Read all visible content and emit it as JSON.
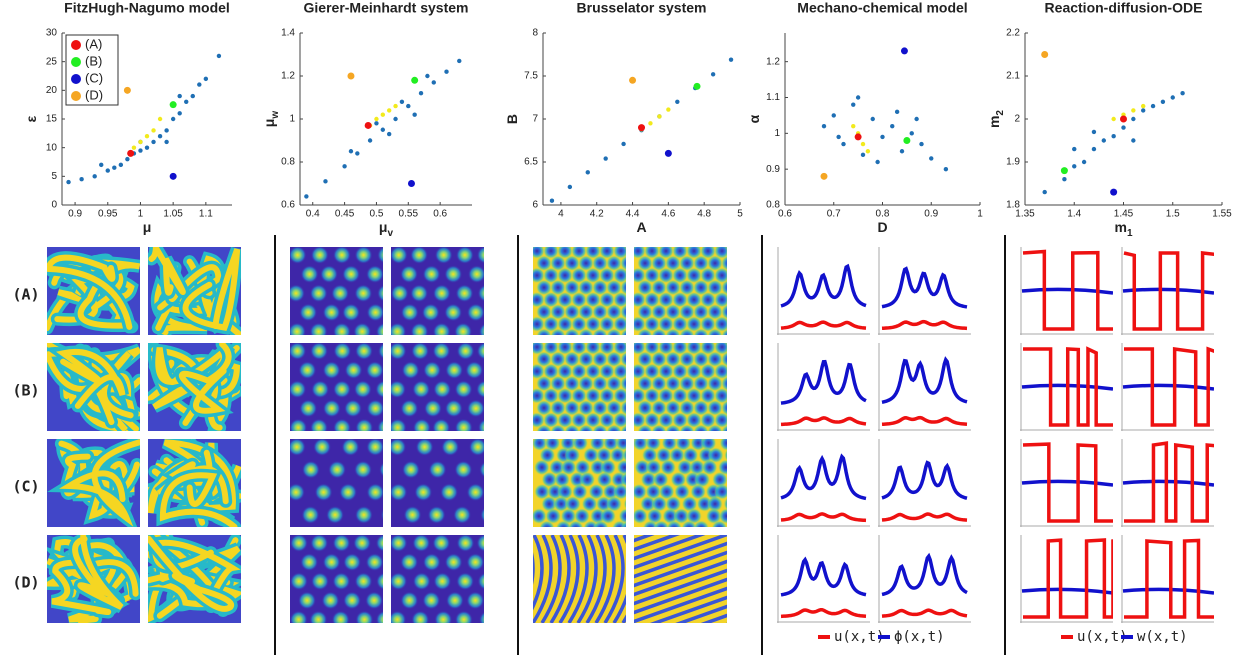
{
  "chart_data": [
    {
      "type": "scatter",
      "title": "FitzHugh-Nagumo model",
      "xlabel": "μ",
      "ylabel": "ε",
      "xlim": [
        0.88,
        1.14
      ],
      "xticks": [
        0.9,
        0.95,
        1,
        1.05,
        1.1
      ],
      "ylim": [
        0,
        30
      ],
      "yticks": [
        0,
        5,
        10,
        15,
        20,
        25,
        30
      ],
      "legend": "upper left",
      "cloud": {
        "color": "#1f6fb4",
        "x": [
          0.89,
          0.91,
          0.93,
          0.95,
          0.96,
          0.97,
          0.98,
          0.99,
          1.0,
          1.01,
          1.02,
          1.03,
          1.04,
          1.05,
          1.06,
          1.07,
          1.08,
          1.09,
          1.1,
          1.12,
          0.94,
          1.0,
          1.04,
          1.06
        ],
        "y": [
          4,
          4.5,
          5,
          6,
          6.5,
          7,
          8,
          9,
          9.5,
          10,
          11,
          12,
          13,
          15,
          16,
          18,
          19,
          21,
          22,
          26,
          7,
          11,
          11,
          19
        ]
      },
      "core": {
        "color": "#f2ea1c",
        "x": [
          0.99,
          1.0,
          1.01,
          1.02,
          1.03
        ],
        "y": [
          10,
          11,
          12,
          13,
          15
        ]
      },
      "series": [
        {
          "name": "(A)",
          "color": "#ee1111",
          "x": [
            0.985
          ],
          "y": [
            9
          ]
        },
        {
          "name": "(B)",
          "color": "#22ee22",
          "x": [
            1.05
          ],
          "y": [
            17.5
          ]
        },
        {
          "name": "(C)",
          "color": "#1111cc",
          "x": [
            1.05
          ],
          "y": [
            5
          ]
        },
        {
          "name": "(D)",
          "color": "#f5a623",
          "x": [
            0.98
          ],
          "y": [
            20
          ]
        }
      ]
    },
    {
      "type": "scatter",
      "title": "Gierer-Meinhardt system",
      "xlabel": "μ",
      "xlabel_sub": "v",
      "ylabel": "μ",
      "ylabel_sub": "w",
      "xlim": [
        0.38,
        0.65
      ],
      "xticks": [
        0.4,
        0.45,
        0.5,
        0.55,
        0.6
      ],
      "ylim": [
        0.6,
        1.4
      ],
      "yticks": [
        0.6,
        0.8,
        1,
        1.2,
        1.4
      ],
      "cloud": {
        "color": "#1f6fb4",
        "x": [
          0.39,
          0.42,
          0.45,
          0.47,
          0.49,
          0.51,
          0.53,
          0.55,
          0.57,
          0.59,
          0.61,
          0.63,
          0.5,
          0.52,
          0.56,
          0.58,
          0.46,
          0.54
        ],
        "y": [
          0.64,
          0.71,
          0.78,
          0.84,
          0.9,
          0.95,
          1.0,
          1.06,
          1.12,
          1.17,
          1.22,
          1.27,
          0.98,
          0.93,
          1.02,
          1.2,
          0.85,
          1.08
        ]
      },
      "core": {
        "color": "#f2ea1c",
        "x": [
          0.49,
          0.5,
          0.51,
          0.52,
          0.53
        ],
        "y": [
          0.97,
          1.0,
          1.02,
          1.04,
          1.06
        ]
      },
      "series": [
        {
          "color": "#ee1111",
          "x": [
            0.487
          ],
          "y": [
            0.97
          ]
        },
        {
          "color": "#22ee22",
          "x": [
            0.56
          ],
          "y": [
            1.18
          ]
        },
        {
          "color": "#1111cc",
          "x": [
            0.555
          ],
          "y": [
            0.7
          ]
        },
        {
          "color": "#f5a623",
          "x": [
            0.46
          ],
          "y": [
            1.2
          ]
        }
      ]
    },
    {
      "type": "scatter",
      "title": "Brusselator system",
      "xlabel": "A",
      "ylabel": "B",
      "xlim": [
        3.9,
        5
      ],
      "xticks": [
        4,
        4.2,
        4.4,
        4.6,
        4.8,
        5
      ],
      "ylim": [
        6,
        8
      ],
      "yticks": [
        6,
        6.5,
        7,
        7.5,
        8
      ],
      "cloud": {
        "color": "#1f6fb4",
        "x": [
          3.95,
          4.05,
          4.15,
          4.25,
          4.35,
          4.45,
          4.55,
          4.65,
          4.75,
          4.85,
          4.95
        ],
        "y": [
          6.05,
          6.21,
          6.38,
          6.54,
          6.71,
          6.87,
          7.03,
          7.2,
          7.36,
          7.52,
          7.69
        ]
      },
      "core": {
        "color": "#f2ea1c",
        "x": [
          4.45,
          4.5,
          4.55,
          4.6
        ],
        "y": [
          6.88,
          6.95,
          7.03,
          7.11
        ]
      },
      "series": [
        {
          "color": "#ee1111",
          "x": [
            4.45
          ],
          "y": [
            6.9
          ]
        },
        {
          "color": "#22ee22",
          "x": [
            4.76
          ],
          "y": [
            7.38
          ]
        },
        {
          "color": "#1111cc",
          "x": [
            4.6
          ],
          "y": [
            6.6
          ]
        },
        {
          "color": "#f5a623",
          "x": [
            4.4
          ],
          "y": [
            7.45
          ]
        }
      ]
    },
    {
      "type": "scatter",
      "title": "Mechano-chemical model",
      "xlabel": "D",
      "ylabel": "α",
      "xlim": [
        0.6,
        1
      ],
      "xticks": [
        0.6,
        0.7,
        0.8,
        0.9,
        1
      ],
      "ylim": [
        0.8,
        1.28
      ],
      "yticks": [
        0.8,
        0.9,
        1,
        1.1,
        1.2
      ],
      "cloud": {
        "color": "#1f6fb4",
        "x": [
          0.68,
          0.7,
          0.72,
          0.74,
          0.76,
          0.78,
          0.8,
          0.82,
          0.84,
          0.86,
          0.88,
          0.9,
          0.75,
          0.79,
          0.83,
          0.71,
          0.93,
          0.87
        ],
        "y": [
          1.02,
          1.05,
          0.97,
          1.08,
          0.94,
          1.04,
          0.99,
          1.02,
          0.95,
          1.0,
          0.97,
          0.93,
          1.1,
          0.92,
          1.06,
          0.99,
          0.9,
          1.04
        ]
      },
      "core": {
        "color": "#f2ea1c",
        "x": [
          0.75,
          0.76,
          0.74,
          0.77
        ],
        "y": [
          1.0,
          0.97,
          1.02,
          0.95
        ]
      },
      "series": [
        {
          "color": "#ee1111",
          "x": [
            0.75
          ],
          "y": [
            0.99
          ]
        },
        {
          "color": "#22ee22",
          "x": [
            0.85
          ],
          "y": [
            0.98
          ]
        },
        {
          "color": "#1111cc",
          "x": [
            0.845
          ],
          "y": [
            1.23
          ]
        },
        {
          "color": "#f5a623",
          "x": [
            0.68
          ],
          "y": [
            0.88
          ]
        }
      ]
    },
    {
      "type": "scatter",
      "title": "Reaction-diffusion-ODE",
      "xlabel": "m",
      "xlabel_sub": "1",
      "ylabel": "m",
      "ylabel_sub": "2",
      "xlim": [
        1.35,
        1.55
      ],
      "xticks": [
        1.35,
        1.4,
        1.45,
        1.5,
        1.55
      ],
      "ylim": [
        1.8,
        2.2
      ],
      "yticks": [
        1.8,
        1.9,
        2,
        2.1,
        2.2
      ],
      "cloud": {
        "color": "#1f6fb4",
        "x": [
          1.37,
          1.39,
          1.4,
          1.41,
          1.42,
          1.43,
          1.44,
          1.45,
          1.46,
          1.47,
          1.48,
          1.49,
          1.5,
          1.51,
          1.42,
          1.46,
          1.4
        ],
        "y": [
          1.83,
          1.86,
          1.89,
          1.9,
          1.93,
          1.95,
          1.96,
          1.98,
          2.0,
          2.02,
          2.03,
          2.04,
          2.05,
          2.06,
          1.97,
          1.95,
          1.93
        ]
      },
      "core": {
        "color": "#f2ea1c",
        "x": [
          1.44,
          1.45,
          1.46,
          1.47
        ],
        "y": [
          2.0,
          2.01,
          2.02,
          2.03
        ]
      },
      "series": [
        {
          "color": "#ee1111",
          "x": [
            1.45
          ],
          "y": [
            2.0
          ]
        },
        {
          "color": "#22ee22",
          "x": [
            1.39
          ],
          "y": [
            1.88
          ]
        },
        {
          "color": "#1111cc",
          "x": [
            1.44
          ],
          "y": [
            1.83
          ]
        },
        {
          "color": "#f5a623",
          "x": [
            1.37
          ],
          "y": [
            2.15
          ]
        }
      ]
    }
  ],
  "panels": {
    "row_labels": [
      "(A)",
      "(B)",
      "(C)",
      "(D)"
    ],
    "legends": [
      {
        "items": [
          {
            "name": "u(x,t)",
            "color": "#ee1111"
          },
          {
            "name": "ϕ(x,t)",
            "color": "#1111cc"
          }
        ]
      },
      {
        "items": [
          {
            "name": "u(x,t)",
            "color": "#ee1111"
          },
          {
            "name": "w(x,t)",
            "color": "#1111cc"
          }
        ]
      }
    ]
  }
}
